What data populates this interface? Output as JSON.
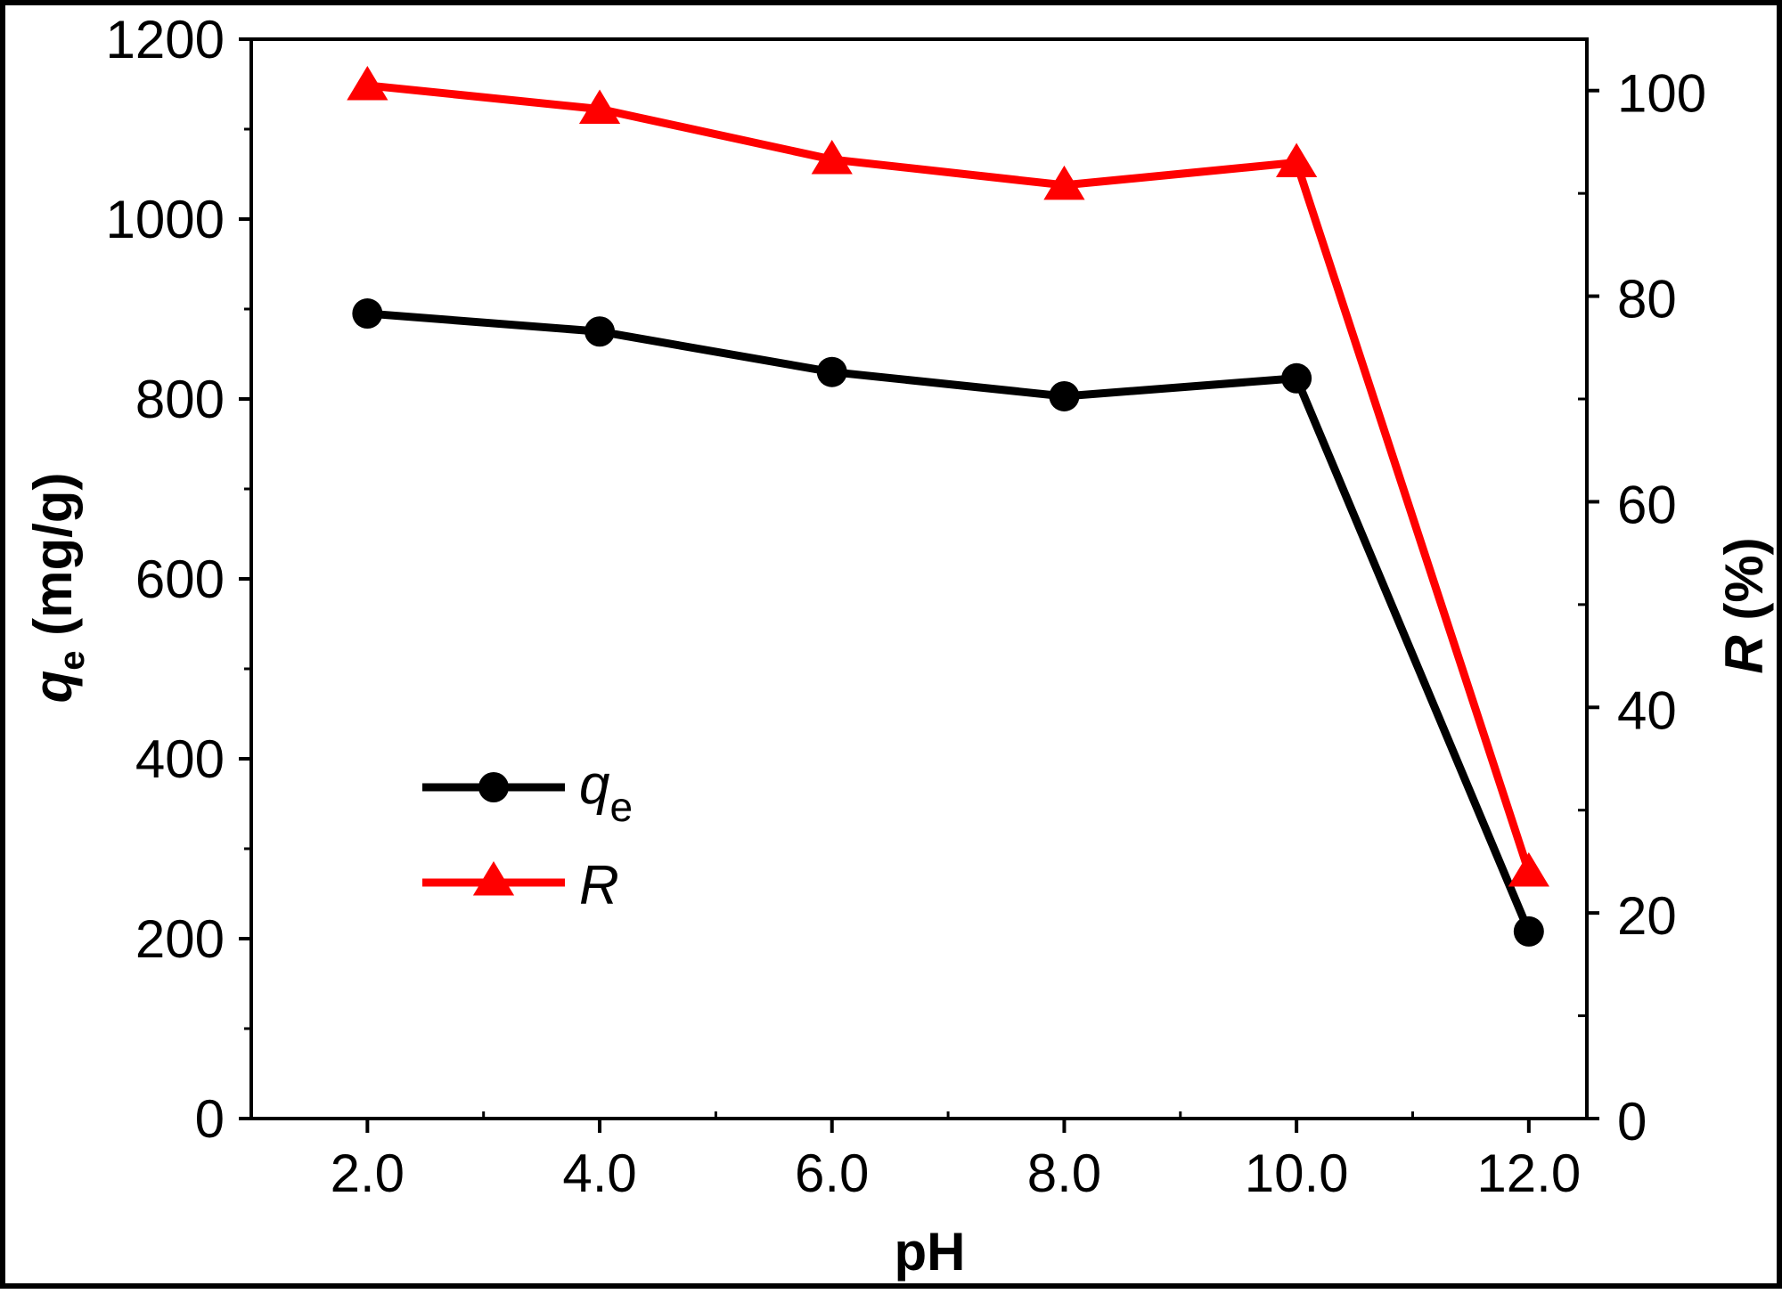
{
  "chart_data": {
    "type": "line",
    "title": "",
    "x": [
      2.0,
      4.0,
      6.0,
      8.0,
      10.0,
      12.0
    ],
    "xticklabels": [
      "2.0",
      "4.0",
      "6.0",
      "8.0",
      "10.0",
      "12.0"
    ],
    "xlabel": "pH",
    "xlim": [
      1.0,
      12.5
    ],
    "ylabel_left": {
      "main": "q",
      "sub": "e",
      "unit": " (mg/g)"
    },
    "ylim_left": [
      0,
      1200
    ],
    "yticks_left": [
      0,
      200,
      400,
      600,
      800,
      1000,
      1200
    ],
    "yticklabels_left": [
      "0",
      "200",
      "400",
      "600",
      "800",
      "1000",
      "1200"
    ],
    "ylabel_right": {
      "main": "R",
      "unit": " (%)"
    },
    "ylim_right": [
      0,
      105
    ],
    "yticks_right": [
      0,
      20,
      40,
      60,
      80,
      100
    ],
    "yticklabels_right": [
      "0",
      "20",
      "40",
      "60",
      "80",
      "100"
    ],
    "series": [
      {
        "name": "q",
        "name_sub": "e",
        "axis": "left",
        "marker": "circle",
        "color": "#000000",
        "values": [
          895,
          875,
          830,
          803,
          823,
          208
        ]
      },
      {
        "name": "R",
        "axis": "right",
        "marker": "triangle",
        "color": "#ff0000",
        "values": [
          100.5,
          98.2,
          93.3,
          90.8,
          93.0,
          24.0
        ]
      }
    ],
    "legend": "left-center",
    "grid": false
  }
}
